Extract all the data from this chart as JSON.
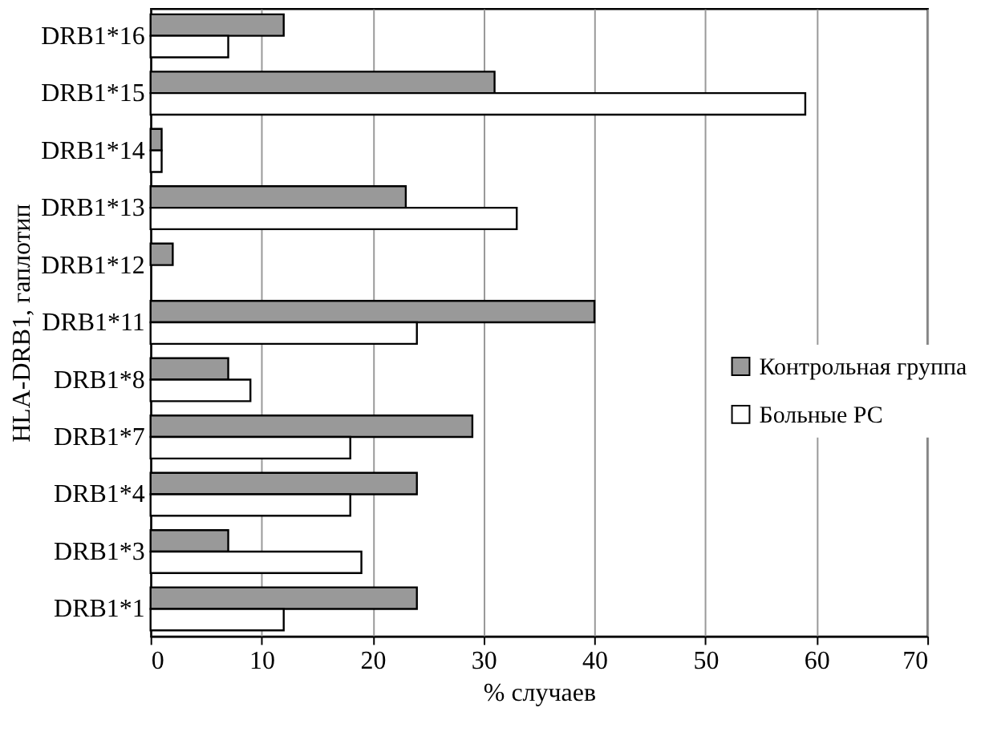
{
  "chart_data": {
    "type": "bar",
    "orientation": "horizontal",
    "xlabel": "% случаев",
    "ylabel": "HLA-DRB1, гаплотип",
    "categories": [
      "DRB1*16",
      "DRB1*15",
      "DRB1*14",
      "DRB1*13",
      "DRB1*12",
      "DRB1*11",
      "DRB1*8",
      "DRB1*7",
      "DRB1*4",
      "DRB1*3",
      "DRB1*1"
    ],
    "series": [
      {
        "name": "Контрольная группа",
        "color": "#999999",
        "values": [
          12,
          31,
          1,
          23,
          2,
          40,
          7,
          29,
          24,
          7,
          24
        ]
      },
      {
        "name": "Больные РС",
        "color": "#ffffff",
        "values": [
          7,
          59,
          1,
          33,
          null,
          24,
          9,
          18,
          18,
          19,
          12
        ]
      }
    ],
    "xlim": [
      0,
      70
    ],
    "xticks": [
      0,
      10,
      20,
      30,
      40,
      50,
      60,
      70
    ],
    "grid": "x",
    "legend": "right"
  }
}
